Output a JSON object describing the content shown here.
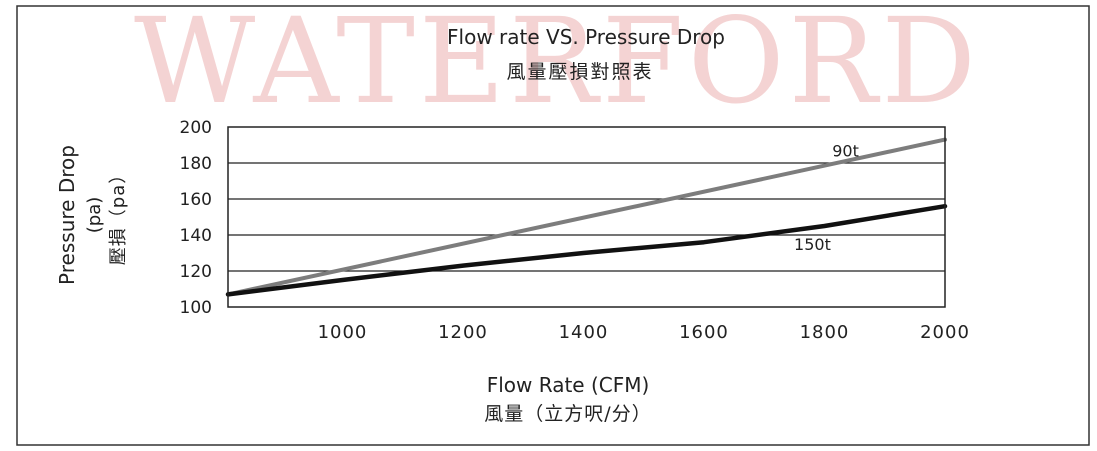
{
  "chart_data": {
    "type": "line",
    "watermark": "WATERFORD",
    "title": "Flow rate VS. Pressure Drop",
    "subtitle": "風量壓損對照表",
    "xlabel": "Flow Rate (CFM)",
    "xlabel_cn": "風量（立方呎/分）",
    "ylabel": "Pressure Drop",
    "ylabel_unit": "(pa)",
    "ylabel_cn": "壓損（pa）",
    "xlim": [
      810,
      2000
    ],
    "ylim": [
      100,
      200
    ],
    "x_ticks": [
      {
        "value": 1000,
        "label": "1000"
      },
      {
        "value": 1200,
        "label": "1200"
      },
      {
        "value": 1400,
        "label": "1400"
      },
      {
        "value": 1600,
        "label": "1600"
      },
      {
        "value": 1800,
        "label": "1800"
      },
      {
        "value": 2000,
        "label": "2000"
      }
    ],
    "y_ticks": [
      {
        "value": 100,
        "label": "100"
      },
      {
        "value": 120,
        "label": "120"
      },
      {
        "value": 140,
        "label": "140"
      },
      {
        "value": 160,
        "label": "160"
      },
      {
        "value": 180,
        "label": "180"
      },
      {
        "value": 200,
        "label": "200"
      }
    ],
    "grid": "horizontal",
    "series": [
      {
        "name": "90t",
        "color": "#7d7d7d",
        "x": [
          810,
          2000
        ],
        "y": [
          107,
          193
        ]
      },
      {
        "name": "150t",
        "color": "#111111",
        "x": [
          810,
          1000,
          1200,
          1400,
          1600,
          1800,
          2000
        ],
        "y": [
          107,
          115,
          123,
          130,
          136,
          145,
          156
        ]
      }
    ]
  }
}
